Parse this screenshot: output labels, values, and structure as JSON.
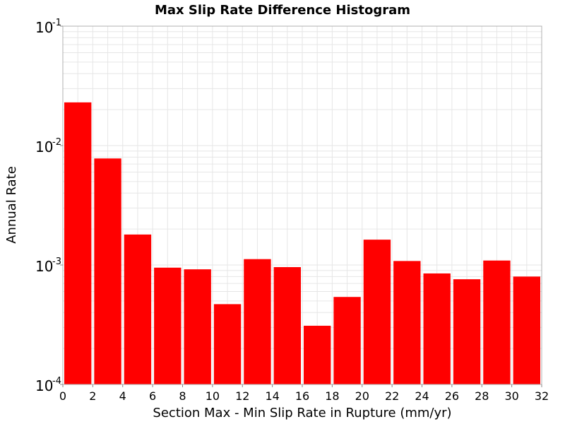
{
  "chart_data": {
    "type": "bar",
    "title": "Max Slip Rate Difference Histogram",
    "xlabel": "Section Max - Min Slip Rate in Rupture (mm/yr)",
    "ylabel": "Annual Rate",
    "x_scale": "linear",
    "y_scale": "log",
    "xlim": [
      0,
      32
    ],
    "ylim": [
      0.0001,
      0.1
    ],
    "x_ticks": [
      "0",
      "2",
      "4",
      "6",
      "8",
      "10",
      "12",
      "14",
      "16",
      "18",
      "20",
      "22",
      "24",
      "26",
      "28",
      "30",
      "32"
    ],
    "y_ticks": [
      {
        "value": 0.1,
        "base": "10",
        "exp": "-1"
      },
      {
        "value": 0.01,
        "base": "10",
        "exp": "-2"
      },
      {
        "value": 0.001,
        "base": "10",
        "exp": "-3"
      },
      {
        "value": 0.0001,
        "base": "10",
        "exp": "-4"
      }
    ],
    "bin_width": 2,
    "bins": [
      {
        "x_start": 0,
        "x_end": 2,
        "value": 0.023
      },
      {
        "x_start": 2,
        "x_end": 4,
        "value": 0.0078
      },
      {
        "x_start": 4,
        "x_end": 6,
        "value": 0.0018
      },
      {
        "x_start": 6,
        "x_end": 8,
        "value": 0.00095
      },
      {
        "x_start": 8,
        "x_end": 10,
        "value": 0.00092
      },
      {
        "x_start": 10,
        "x_end": 12,
        "value": 0.00047
      },
      {
        "x_start": 12,
        "x_end": 14,
        "value": 0.00112
      },
      {
        "x_start": 14,
        "x_end": 16,
        "value": 0.00096
      },
      {
        "x_start": 16,
        "x_end": 18,
        "value": 0.00031
      },
      {
        "x_start": 18,
        "x_end": 20,
        "value": 0.00054
      },
      {
        "x_start": 20,
        "x_end": 22,
        "value": 0.00163
      },
      {
        "x_start": 22,
        "x_end": 24,
        "value": 0.00108
      },
      {
        "x_start": 24,
        "x_end": 26,
        "value": 0.00085
      },
      {
        "x_start": 26,
        "x_end": 28,
        "value": 0.00076
      },
      {
        "x_start": 28,
        "x_end": 30,
        "value": 0.00109
      },
      {
        "x_start": 30,
        "x_end": 32,
        "value": 0.0008
      }
    ],
    "bar_color": "#ff0000",
    "grid": true,
    "grid_color": "#e6e6e6",
    "legend": "none"
  }
}
